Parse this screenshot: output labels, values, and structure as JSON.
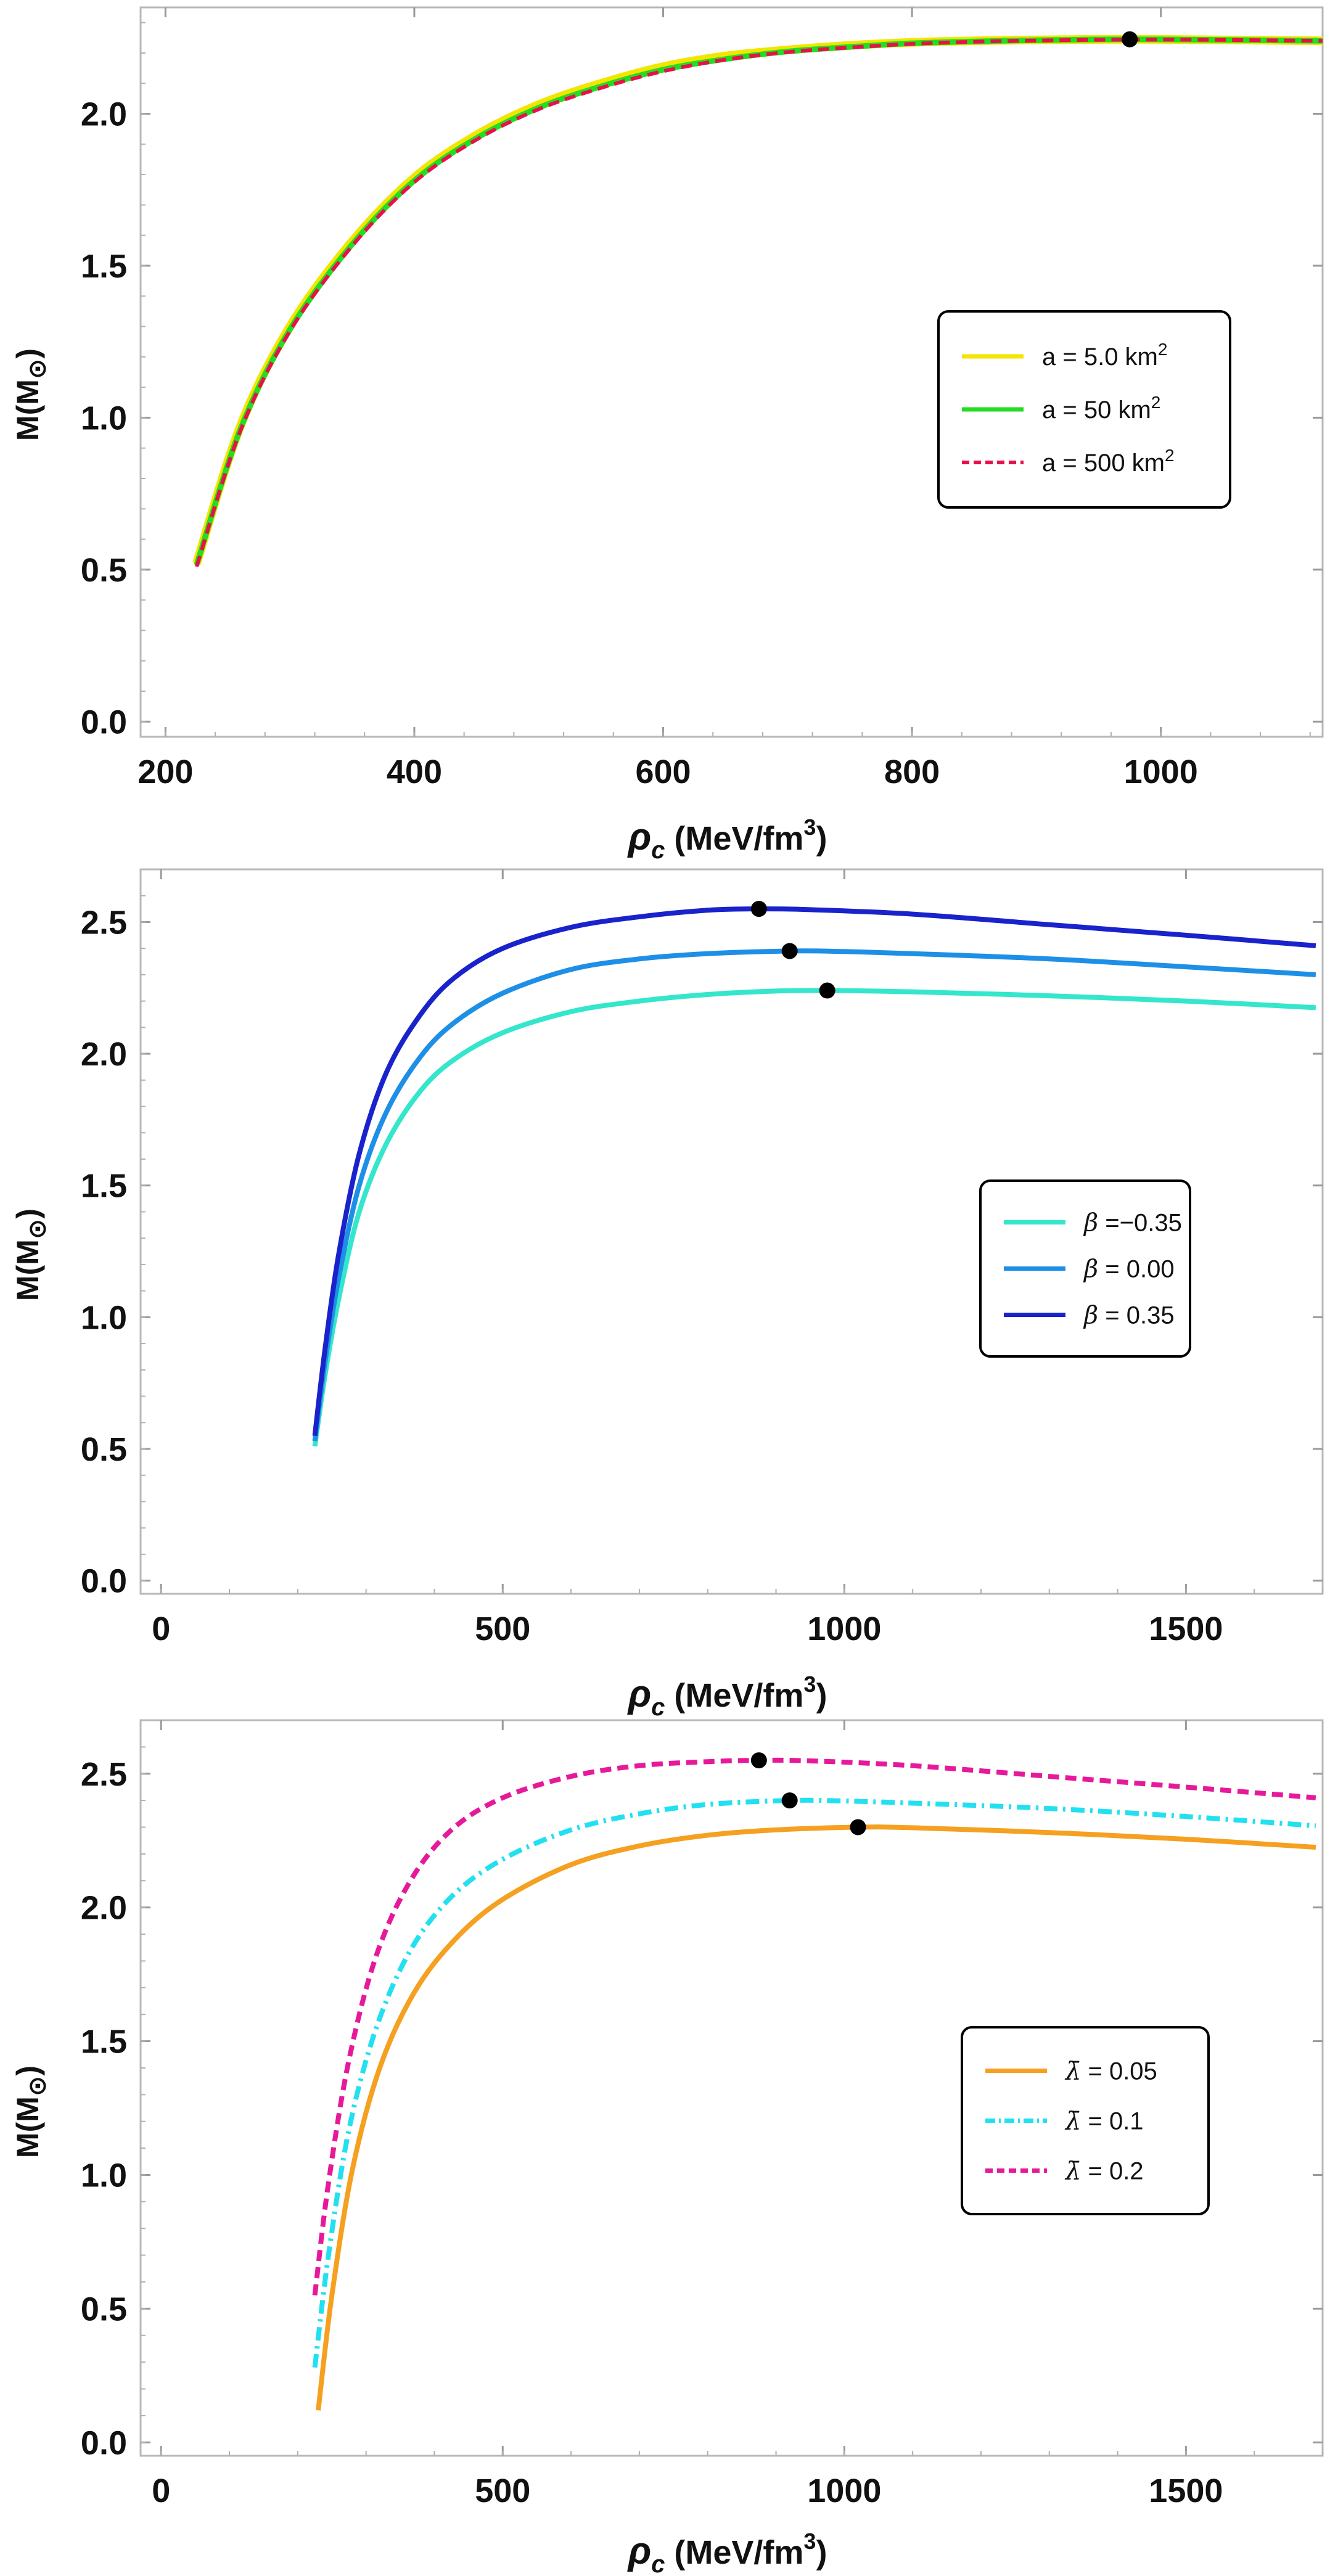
{
  "chart_data": [
    {
      "type": "line",
      "title": "",
      "xlabel": {
        "symbol": "ρ",
        "sub": "c",
        "unit_pre": " (MeV/fm",
        "unit_sup": "3",
        "unit_post": ")"
      },
      "ylabel": {
        "pre": "M(M",
        "sub": "⊙",
        "post": ")"
      },
      "xlim": [
        180,
        1130
      ],
      "ylim": [
        -0.05,
        2.35
      ],
      "xticks": [
        200,
        400,
        600,
        800,
        1000
      ],
      "xtick_labels": [
        "200",
        "400",
        "600",
        "800",
        "1000"
      ],
      "yticks": [
        0.0,
        0.5,
        1.0,
        1.5,
        2.0
      ],
      "ytick_labels": [
        "0.0",
        "0.5",
        "1.0",
        "1.5",
        "2.0"
      ],
      "grid": false,
      "legend_position": "center-right",
      "series": [
        {
          "label_pre": "a = 5.0 km",
          "label_sup": "2",
          "legend_symbol": "",
          "color": "#f2e600",
          "dash": "",
          "width": 14,
          "x": [
            225,
            260,
            300,
            350,
            400,
            450,
            500,
            550,
            600,
            650,
            700,
            750,
            800,
            850,
            900,
            975,
            1050,
            1130
          ],
          "y": [
            0.52,
            0.97,
            1.3,
            1.58,
            1.79,
            1.93,
            2.03,
            2.1,
            2.155,
            2.19,
            2.21,
            2.225,
            2.235,
            2.24,
            2.243,
            2.245,
            2.243,
            2.24
          ]
        },
        {
          "label_pre": "a = 50 km",
          "label_sup": "2",
          "legend_symbol": "",
          "color": "#22dd22",
          "dash": "",
          "width": 9,
          "x": [
            225,
            260,
            300,
            350,
            400,
            450,
            500,
            550,
            600,
            650,
            700,
            750,
            800,
            850,
            900,
            975,
            1050,
            1130
          ],
          "y": [
            0.515,
            0.96,
            1.29,
            1.57,
            1.78,
            1.92,
            2.02,
            2.09,
            2.145,
            2.18,
            2.205,
            2.22,
            2.232,
            2.238,
            2.242,
            2.245,
            2.243,
            2.24
          ]
        },
        {
          "label_pre": "a = 500 km",
          "label_sup": "2",
          "legend_symbol": "",
          "color": "#e8104a",
          "dash": "18,10",
          "width": 6,
          "x": [
            225,
            260,
            300,
            350,
            400,
            450,
            500,
            550,
            600,
            650,
            700,
            750,
            800,
            850,
            900,
            975,
            1050,
            1130
          ],
          "y": [
            0.51,
            0.955,
            1.285,
            1.565,
            1.775,
            1.915,
            2.015,
            2.085,
            2.14,
            2.178,
            2.203,
            2.218,
            2.23,
            2.237,
            2.241,
            2.244,
            2.243,
            2.24
          ]
        }
      ],
      "markers": [
        {
          "x": 975,
          "y": 2.245
        }
      ]
    },
    {
      "type": "line",
      "title": "",
      "xlabel": {
        "symbol": "ρ",
        "sub": "c",
        "unit_pre": " (MeV/fm",
        "unit_sup": "3",
        "unit_post": ")"
      },
      "ylabel": {
        "pre": "M(M",
        "sub": "⊙",
        "post": ")"
      },
      "xlim": [
        -30,
        1700
      ],
      "ylim": [
        -0.05,
        2.7
      ],
      "xticks": [
        0,
        500,
        1000,
        1500
      ],
      "xtick_labels": [
        "0",
        "500",
        "1000",
        "1500"
      ],
      "yticks": [
        0.0,
        0.5,
        1.0,
        1.5,
        2.0,
        2.5
      ],
      "ytick_labels": [
        "0.0",
        "0.5",
        "1.0",
        "1.5",
        "2.0",
        "2.5"
      ],
      "grid": false,
      "legend_position": "center-right",
      "series": [
        {
          "label_pre": " =−0.35",
          "label_sup": "",
          "legend_symbol": "β",
          "color": "#33e6cc",
          "dash": "",
          "width": 8,
          "x": [
            225,
            240,
            260,
            290,
            330,
            380,
            430,
            500,
            600,
            700,
            800,
            900,
            975,
            1100,
            1300,
            1500,
            1690
          ],
          "y": [
            0.51,
            0.78,
            1.07,
            1.4,
            1.66,
            1.86,
            1.98,
            2.08,
            2.16,
            2.2,
            2.225,
            2.238,
            2.24,
            2.235,
            2.22,
            2.2,
            2.175
          ]
        },
        {
          "label_pre": " = 0.00",
          "label_sup": "",
          "legend_symbol": "β",
          "color": "#1e8fe6",
          "dash": "",
          "width": 8,
          "x": [
            225,
            240,
            260,
            290,
            330,
            380,
            430,
            500,
            600,
            700,
            800,
            920,
            1000,
            1100,
            1300,
            1500,
            1690
          ],
          "y": [
            0.53,
            0.83,
            1.15,
            1.5,
            1.78,
            1.99,
            2.12,
            2.23,
            2.32,
            2.36,
            2.38,
            2.39,
            2.388,
            2.38,
            2.36,
            2.33,
            2.3
          ]
        },
        {
          "label_pre": " = 0.35",
          "label_sup": "",
          "legend_symbol": "β",
          "color": "#1a22cc",
          "dash": "",
          "width": 8,
          "x": [
            225,
            240,
            260,
            290,
            330,
            380,
            430,
            500,
            600,
            700,
            800,
            875,
            950,
            1100,
            1300,
            1500,
            1690
          ],
          "y": [
            0.55,
            0.88,
            1.24,
            1.62,
            1.93,
            2.15,
            2.29,
            2.4,
            2.48,
            2.52,
            2.545,
            2.55,
            2.547,
            2.53,
            2.49,
            2.45,
            2.41
          ]
        }
      ],
      "markers": [
        {
          "x": 975,
          "y": 2.24
        },
        {
          "x": 920,
          "y": 2.39
        },
        {
          "x": 875,
          "y": 2.55
        }
      ]
    },
    {
      "type": "line",
      "title": "",
      "xlabel": {
        "symbol": "ρ",
        "sub": "c",
        "unit_pre": " (MeV/fm",
        "unit_sup": "3",
        "unit_post": ")"
      },
      "ylabel": {
        "pre": "M(M",
        "sub": "⊙",
        "post": ")"
      },
      "xlim": [
        -30,
        1700
      ],
      "ylim": [
        -0.05,
        2.7
      ],
      "xticks": [
        0,
        500,
        1000,
        1500
      ],
      "xtick_labels": [
        "0",
        "500",
        "1000",
        "1500"
      ],
      "yticks": [
        0.0,
        0.5,
        1.0,
        1.5,
        2.0,
        2.5
      ],
      "ytick_labels": [
        "0.0",
        "0.5",
        "1.0",
        "1.5",
        "2.0",
        "2.5"
      ],
      "grid": false,
      "legend_position": "center-right",
      "series": [
        {
          "label_pre": " = 0.05",
          "label_sup": "",
          "legend_symbol": "λ̄",
          "color": "#f5a020",
          "dash": "",
          "width": 8,
          "x": [
            230,
            250,
            280,
            320,
            370,
            430,
            500,
            600,
            700,
            800,
            900,
            1020,
            1100,
            1300,
            1500,
            1690
          ],
          "y": [
            0.12,
            0.55,
            1.02,
            1.4,
            1.68,
            1.88,
            2.03,
            2.16,
            2.23,
            2.27,
            2.29,
            2.3,
            2.298,
            2.28,
            2.255,
            2.225
          ]
        },
        {
          "label_pre": " = 0.1",
          "label_sup": "",
          "legend_symbol": "λ̄",
          "color": "#22e0f0",
          "dash": "22,9,4,9",
          "width": 8,
          "x": [
            225,
            245,
            275,
            315,
            365,
            425,
            500,
            600,
            700,
            800,
            920,
            1000,
            1100,
            1300,
            1500,
            1690
          ],
          "y": [
            0.28,
            0.7,
            1.17,
            1.55,
            1.84,
            2.04,
            2.18,
            2.29,
            2.35,
            2.385,
            2.4,
            2.398,
            2.39,
            2.37,
            2.34,
            2.305
          ]
        },
        {
          "label_pre": " = 0.2",
          "label_sup": "",
          "legend_symbol": "λ̄",
          "color": "#e6199a",
          "dash": "18,10",
          "width": 8,
          "x": [
            225,
            245,
            275,
            315,
            365,
            425,
            500,
            600,
            700,
            800,
            875,
            950,
            1100,
            1300,
            1500,
            1690
          ],
          "y": [
            0.55,
            0.97,
            1.43,
            1.82,
            2.1,
            2.29,
            2.41,
            2.49,
            2.53,
            2.545,
            2.55,
            2.548,
            2.53,
            2.49,
            2.45,
            2.41
          ]
        }
      ],
      "markers": [
        {
          "x": 1020,
          "y": 2.3
        },
        {
          "x": 920,
          "y": 2.4
        },
        {
          "x": 875,
          "y": 2.55
        }
      ]
    }
  ]
}
